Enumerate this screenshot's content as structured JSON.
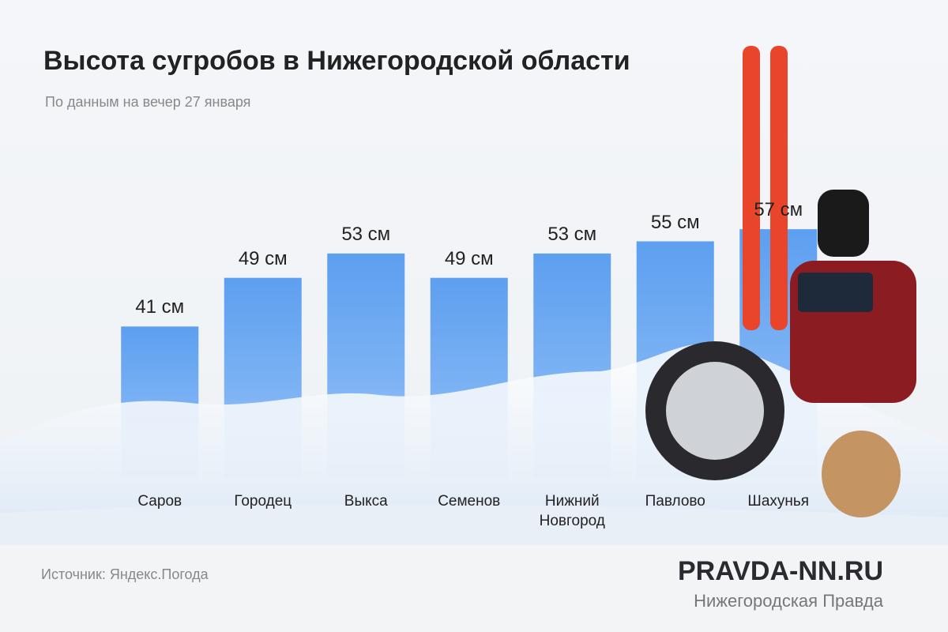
{
  "chart_data": {
    "type": "bar",
    "title": "Высота сугробов в Нижегородской области",
    "subtitle": "По данным на вечер 27 января",
    "categories": [
      "Саров",
      "Городец",
      "Выкса",
      "Семенов",
      "Нижний Новгород",
      "Павлово",
      "Шахунья"
    ],
    "values": [
      41,
      49,
      53,
      49,
      53,
      55,
      57
    ],
    "value_labels": [
      "41 см",
      "49 см",
      "53 см",
      "49 см",
      "53 см",
      "55 см",
      "57 см"
    ],
    "color": "#5d9ff0",
    "source": "Источник: Яндекс.Погода",
    "brand": "PRAVDA-NN.RU",
    "brand_subtitle": "Нижегородская Правда"
  }
}
